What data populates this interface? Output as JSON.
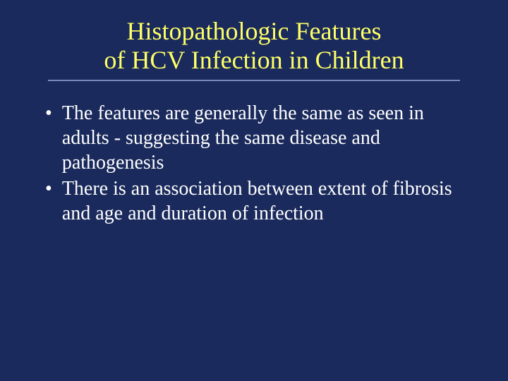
{
  "title": {
    "line1": "Histopathologic Features",
    "line2": "of HCV Infection in Children",
    "color": "#ffff66",
    "fontsize": 36
  },
  "background_color": "#1a2a5c",
  "underline_color": "#7a8ab8",
  "bullets": [
    {
      "marker": "•",
      "text": "The features are generally the same as seen in adults - suggesting the same disease and pathogenesis"
    },
    {
      "marker": "•",
      "text": "There is an association between extent of fibrosis and age and duration of infection"
    }
  ],
  "body_text_color": "#ffffff",
  "body_fontsize": 28
}
